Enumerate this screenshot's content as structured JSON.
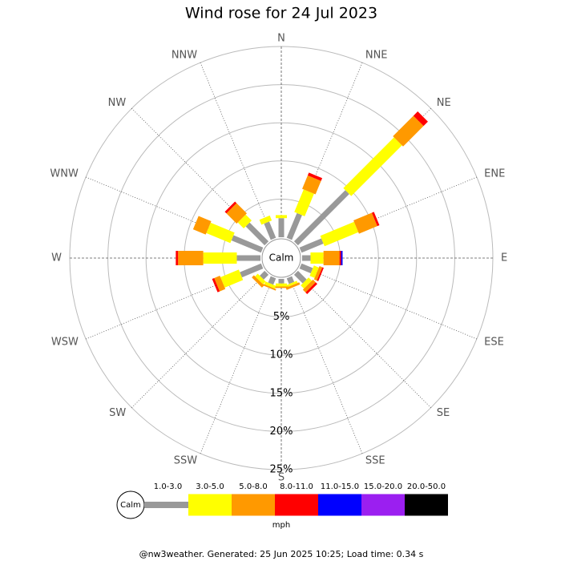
{
  "chart_data": {
    "type": "windrose",
    "title": "Wind rose for 24 Jul 2023",
    "categories": [
      "N",
      "NNE",
      "NE",
      "ENE",
      "E",
      "ESE",
      "SE",
      "SSE",
      "S",
      "SSW",
      "SW",
      "WSW",
      "W",
      "WNW",
      "NW",
      "NNW"
    ],
    "calm_label": "Calm",
    "unit": "mph",
    "ylim": [
      0,
      25
    ],
    "yticks": [
      {
        "value": 5,
        "label": "5%"
      },
      {
        "value": 10,
        "label": "10%"
      },
      {
        "value": 15,
        "label": "15%"
      },
      {
        "value": 20,
        "label": "20%"
      },
      {
        "value": 25,
        "label": "25%"
      }
    ],
    "series": [
      {
        "name": "1.0-3.0",
        "color": "#999999",
        "values": [
          2.5,
          3.5,
          9.5,
          3.1,
          1.1,
          1.6,
          1.6,
          0.8,
          0.6,
          0.9,
          0.9,
          3.0,
          3.1,
          4.2,
          3.5,
          2.3
        ]
      },
      {
        "name": "3.0-5.0",
        "color": "#ffff00",
        "values": [
          0.4,
          3.2,
          9.4,
          4.8,
          1.7,
          0.7,
          0.6,
          0.3,
          0.4,
          0.4,
          0.5,
          2.6,
          4.4,
          3.4,
          1.1,
          0.7
        ]
      },
      {
        "name": "5.0-8.0",
        "color": "#ff9900",
        "values": [
          0,
          1.9,
          3.8,
          2.6,
          2.1,
          0.4,
          0.5,
          0.3,
          0.2,
          0.2,
          0.4,
          0.8,
          3.3,
          1.8,
          1.9,
          0
        ]
      },
      {
        "name": "8.0-11.0",
        "color": "#ff0000",
        "values": [
          0,
          0.4,
          0.8,
          0.3,
          0.2,
          0.2,
          0.3,
          0,
          0,
          0,
          0,
          0.3,
          0.3,
          0,
          0.3,
          0
        ]
      },
      {
        "name": "11.0-15.0",
        "color": "#0000ff",
        "values": [
          0,
          0,
          0,
          0,
          0.2,
          0,
          0,
          0,
          0,
          0,
          0,
          0,
          0,
          0,
          0,
          0
        ]
      },
      {
        "name": "15.0-20.0",
        "color": "#9b1ff0",
        "values": [
          0,
          0,
          0,
          0,
          0,
          0,
          0,
          0,
          0,
          0,
          0,
          0,
          0,
          0,
          0,
          0
        ]
      },
      {
        "name": "20.0-50.0",
        "color": "#000000",
        "values": [
          0,
          0,
          0,
          0,
          0,
          0,
          0,
          0,
          0,
          0,
          0,
          0,
          0,
          0,
          0,
          0
        ]
      }
    ],
    "footer": "@nw3weather. Generated: 25 Jun 2025 10:25; Load time: 0.34 s"
  }
}
